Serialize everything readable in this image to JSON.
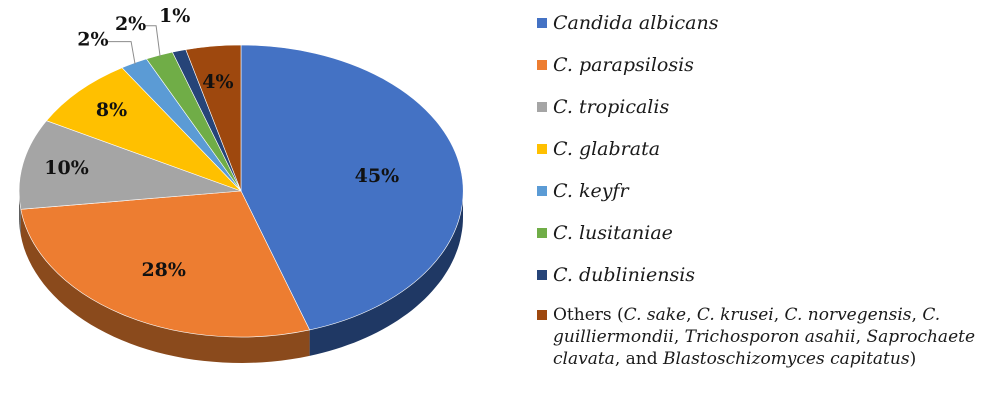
{
  "chart_data": {
    "type": "pie",
    "style": "3d",
    "legend_position": "right",
    "slices": [
      {
        "name": "Candida albicans",
        "value": 45,
        "label": "45%",
        "color": "#4472C4",
        "side_color": "#1F3864"
      },
      {
        "name": "C. parapsilosis",
        "value": 28,
        "label": "28%",
        "color": "#ED7D31",
        "side_color": "#8A4A1C"
      },
      {
        "name": "C. tropicalis",
        "value": 10,
        "label": "10%",
        "color": "#A5A5A5",
        "side_color": "#5E5E5E"
      },
      {
        "name": "C. glabrata",
        "value": 8,
        "label": "8%",
        "color": "#FFC000",
        "side_color": "#8C6A00"
      },
      {
        "name": "C. keyfr",
        "value": 2,
        "label": "2%",
        "color": "#5B9BD5",
        "side_color": "#2E5A82"
      },
      {
        "name": "C. lusitaniae",
        "value": 2,
        "label": "2%",
        "color": "#70AD47",
        "side_color": "#3E6227"
      },
      {
        "name": "C. dubliniensis",
        "value": 1,
        "label": "1%",
        "color": "#264478",
        "side_color": "#13223C"
      },
      {
        "name": "Others",
        "value": 4,
        "label": "4%",
        "color": "#9E480E",
        "side_color": "#5A2807"
      }
    ]
  },
  "legend": {
    "items": [
      {
        "text": "Candida albicans",
        "color": "#4472C4"
      },
      {
        "text": "C. parapsilosis",
        "color": "#ED7D31"
      },
      {
        "text": "C. tropicalis",
        "color": "#A5A5A5"
      },
      {
        "text": "C. glabrata",
        "color": "#FFC000"
      },
      {
        "text": "C. keyfr",
        "color": "#5B9BD5"
      },
      {
        "text": "C. lusitaniae",
        "color": "#70AD47"
      },
      {
        "text": "C. dubliniensis",
        "color": "#264478"
      }
    ],
    "others": {
      "color": "#9E480E",
      "parts": [
        {
          "text": "Others (",
          "italic": false
        },
        {
          "text": "C. sake",
          "italic": true
        },
        {
          "text": ", ",
          "italic": false
        },
        {
          "text": "C. krusei",
          "italic": true
        },
        {
          "text": ", ",
          "italic": false
        },
        {
          "text": "C. norvegensis",
          "italic": true
        },
        {
          "text": ", ",
          "italic": false
        },
        {
          "text": "C. guilliermondii",
          "italic": true
        },
        {
          "text": ", ",
          "italic": false
        },
        {
          "text": "Trichosporon asahii",
          "italic": true
        },
        {
          "text": ", ",
          "italic": false
        },
        {
          "text": "Saprochaete clavata",
          "italic": true
        },
        {
          "text": ", and ",
          "italic": false
        },
        {
          "text": "Blastoschizomyces capitatus",
          "italic": true
        },
        {
          "text": ")",
          "italic": false
        }
      ]
    }
  }
}
